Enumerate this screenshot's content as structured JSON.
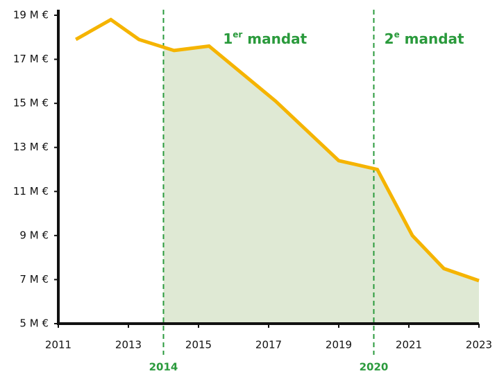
{
  "chart_data": {
    "type": "line",
    "x": [
      2011.5,
      2012.5,
      2013.3,
      2014.3,
      2015.3,
      2017.2,
      2019,
      2020.1,
      2021.1,
      2022,
      2023
    ],
    "series": [
      {
        "color": "#f5b400",
        "values": [
          17.9,
          18.8,
          17.9,
          17.4,
          17.6,
          15.1,
          12.4,
          12.0,
          9.0,
          7.5,
          6.95
        ]
      }
    ],
    "area_color": "#dfe9d4",
    "area_from": 2014,
    "xlim": [
      2011,
      2023
    ],
    "xticks": [
      2011,
      2013,
      2015,
      2017,
      2019,
      2021,
      2023
    ],
    "ylim": [
      5,
      19
    ],
    "yticks": [
      {
        "value": 5,
        "label": "5 M €"
      },
      {
        "value": 7,
        "label": "7 M €"
      },
      {
        "value": 9,
        "label": "9 M €"
      },
      {
        "value": 11,
        "label": "11 M €"
      },
      {
        "value": 13,
        "label": "13 M €"
      },
      {
        "value": 15,
        "label": "15 M €"
      },
      {
        "value": 17,
        "label": "17 M €"
      },
      {
        "value": 19,
        "label": "19 M €"
      }
    ],
    "vlines": [
      {
        "value": 2014,
        "label": "2014"
      },
      {
        "value": 2020,
        "label": "2020"
      }
    ],
    "vline_color": "#2a9a3c",
    "annotations": [
      {
        "x": 2015.7,
        "y": 17.9,
        "main": "1",
        "sup": "er",
        "rest": " mandat"
      },
      {
        "x": 2020.3,
        "y": 17.9,
        "main": "2",
        "sup": "e",
        "rest": " mandat"
      }
    ]
  }
}
